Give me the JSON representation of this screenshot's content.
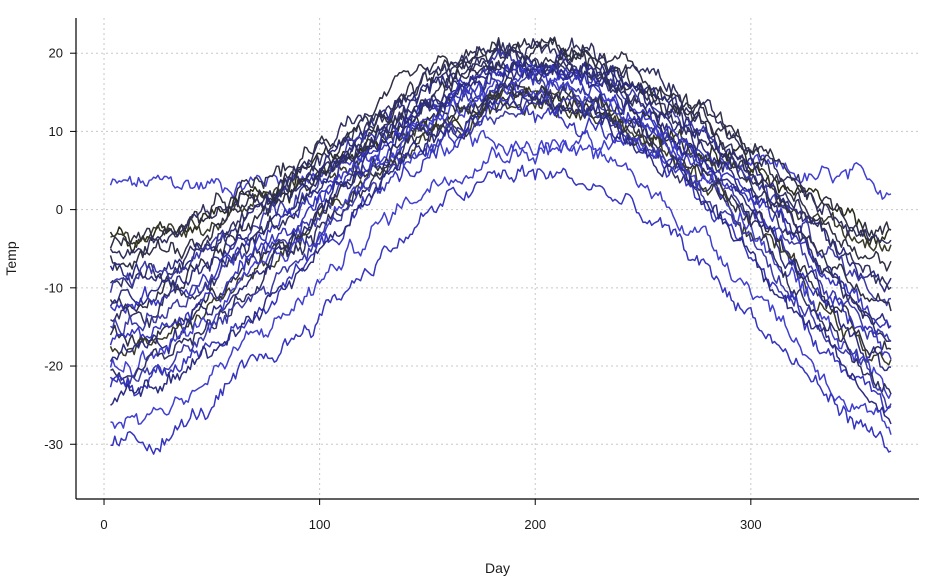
{
  "chart_data": {
    "type": "line",
    "title": "",
    "xlabel": "Day",
    "ylabel": "Temp",
    "xlim": [
      -13,
      378
    ],
    "ylim": [
      -37,
      24.5
    ],
    "x_ticks": [
      0,
      100,
      200,
      300
    ],
    "y_ticks": [
      -30,
      -20,
      -10,
      0,
      10,
      20
    ],
    "x_tick_labels": [
      "0",
      "100",
      "200",
      "300"
    ],
    "y_tick_labels": [
      "-30",
      "-20",
      "-10",
      "0",
      "10",
      "20"
    ],
    "grid": true,
    "legend": "none",
    "colors": {
      "grid": "#c8c8c8",
      "axis": "#000000",
      "series_palette": [
        "#2a2a1a",
        "#3a3a2a",
        "#2f2f45",
        "#303060",
        "#2b2b80",
        "#3a3aa8",
        "#3535c0",
        "#4040d0"
      ]
    },
    "x_range": [
      3,
      365
    ],
    "series": [
      {
        "base": 3.5,
        "peak": 3.5,
        "amp": 0.0,
        "start": 2.5,
        "end": 2.5,
        "color_index": 7
      },
      {
        "base": -3.0,
        "peak": 14.0,
        "amp": 15.0,
        "start": -3.0,
        "end": -4.5,
        "color_index": 0
      },
      {
        "base": -4.0,
        "peak": 13.0,
        "amp": 15.0,
        "start": -3.5,
        "end": -5.0,
        "color_index": 1
      },
      {
        "base": -5.0,
        "peak": 20.5,
        "amp": 22.0,
        "start": -4.0,
        "end": -3.0,
        "color_index": 2
      },
      {
        "base": -6.0,
        "peak": 21.0,
        "amp": 23.0,
        "start": -5.0,
        "end": -6.0,
        "color_index": 3
      },
      {
        "base": -7.0,
        "peak": 20.0,
        "amp": 23.0,
        "start": -6.0,
        "end": -7.0,
        "color_index": 2
      },
      {
        "base": -9.0,
        "peak": 19.0,
        "amp": 24.0,
        "start": -8.0,
        "end": -9.5,
        "color_index": 4
      },
      {
        "base": -10.0,
        "peak": 20.0,
        "amp": 25.0,
        "start": -9.0,
        "end": -10.0,
        "color_index": 3
      },
      {
        "base": -11.0,
        "peak": 18.5,
        "amp": 25.0,
        "start": -10.0,
        "end": -11.5,
        "color_index": 5
      },
      {
        "base": -12.0,
        "peak": 19.5,
        "amp": 26.0,
        "start": -11.0,
        "end": -13.0,
        "color_index": 2
      },
      {
        "base": -13.0,
        "peak": 18.0,
        "amp": 26.0,
        "start": -12.0,
        "end": -14.0,
        "color_index": 4
      },
      {
        "base": -14.0,
        "peak": 17.0,
        "amp": 26.0,
        "start": -13.0,
        "end": -15.0,
        "color_index": 6
      },
      {
        "base": -15.0,
        "peak": 19.0,
        "amp": 28.0,
        "start": -14.0,
        "end": -16.0,
        "color_index": 3
      },
      {
        "base": -16.0,
        "peak": 16.0,
        "amp": 27.0,
        "start": -15.0,
        "end": -17.0,
        "color_index": 5
      },
      {
        "base": -17.0,
        "peak": 15.0,
        "amp": 27.0,
        "start": -16.0,
        "end": -18.5,
        "color_index": 2
      },
      {
        "base": -18.0,
        "peak": 18.0,
        "amp": 30.0,
        "start": -17.0,
        "end": -19.0,
        "color_index": 6
      },
      {
        "base": -19.0,
        "peak": 14.5,
        "amp": 28.0,
        "start": -18.0,
        "end": -20.0,
        "color_index": 1
      },
      {
        "base": -20.0,
        "peak": 17.5,
        "amp": 31.0,
        "start": -19.0,
        "end": -21.0,
        "color_index": 4
      },
      {
        "base": -21.0,
        "peak": 16.0,
        "amp": 31.0,
        "start": -20.0,
        "end": -22.5,
        "color_index": 7
      },
      {
        "base": -22.0,
        "peak": 15.5,
        "amp": 31.0,
        "start": -21.0,
        "end": -23.0,
        "color_index": 3
      },
      {
        "base": -23.0,
        "peak": 13.5,
        "amp": 30.0,
        "start": -22.0,
        "end": -24.0,
        "color_index": 5
      },
      {
        "base": -24.5,
        "peak": 12.5,
        "amp": 31.0,
        "start": -23.0,
        "end": -25.0,
        "color_index": 6
      },
      {
        "base": -26.0,
        "peak": 14.0,
        "amp": 33.0,
        "start": -25.0,
        "end": -26.5,
        "color_index": 4
      },
      {
        "base": -28.0,
        "peak": 8.5,
        "amp": 31.0,
        "start": -27.0,
        "end": -29.5,
        "color_index": 7
      },
      {
        "base": -32.0,
        "peak": 4.5,
        "amp": 31.0,
        "start": -30.5,
        "end": -30.0,
        "color_index": 6
      }
    ]
  }
}
